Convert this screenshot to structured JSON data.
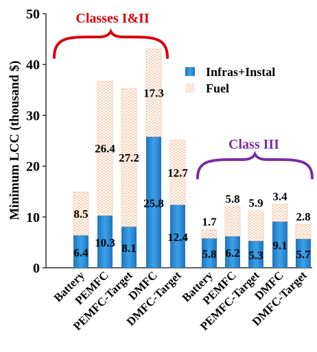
{
  "chart_data": {
    "type": "bar",
    "stacked": true,
    "ylabel": "Minimum LCC (thousand $)",
    "ylim": [
      0,
      50
    ],
    "yticks": [
      0,
      10,
      20,
      30,
      40,
      50
    ],
    "grid": false,
    "legend_position": "top-right",
    "colors": {
      "infras": "#2e8fd6",
      "fuel": "#f6c7a6",
      "class12_brace": "#d9000d",
      "class3_brace": "#7a2ea0"
    },
    "series": [
      {
        "name": "Infras+Instal",
        "key": "infras"
      },
      {
        "name": "Fuel",
        "key": "fuel"
      }
    ],
    "groups": [
      {
        "label": "Classes I&II",
        "categories": [
          "Battery",
          "PEMFC",
          "PEMFC-Target",
          "DMFC",
          "DMFC-Target"
        ],
        "infras": [
          6.4,
          10.3,
          8.1,
          25.8,
          12.4
        ],
        "fuel": [
          8.5,
          26.4,
          27.2,
          17.3,
          12.7
        ]
      },
      {
        "label": "Class III",
        "categories": [
          "Battery",
          "PEMFC",
          "PEMFC-Target",
          "DMFC",
          "DMFC-Target"
        ],
        "infras": [
          5.8,
          6.2,
          5.3,
          9.1,
          5.7
        ],
        "fuel": [
          1.7,
          5.8,
          5.9,
          3.4,
          2.8
        ]
      }
    ]
  }
}
